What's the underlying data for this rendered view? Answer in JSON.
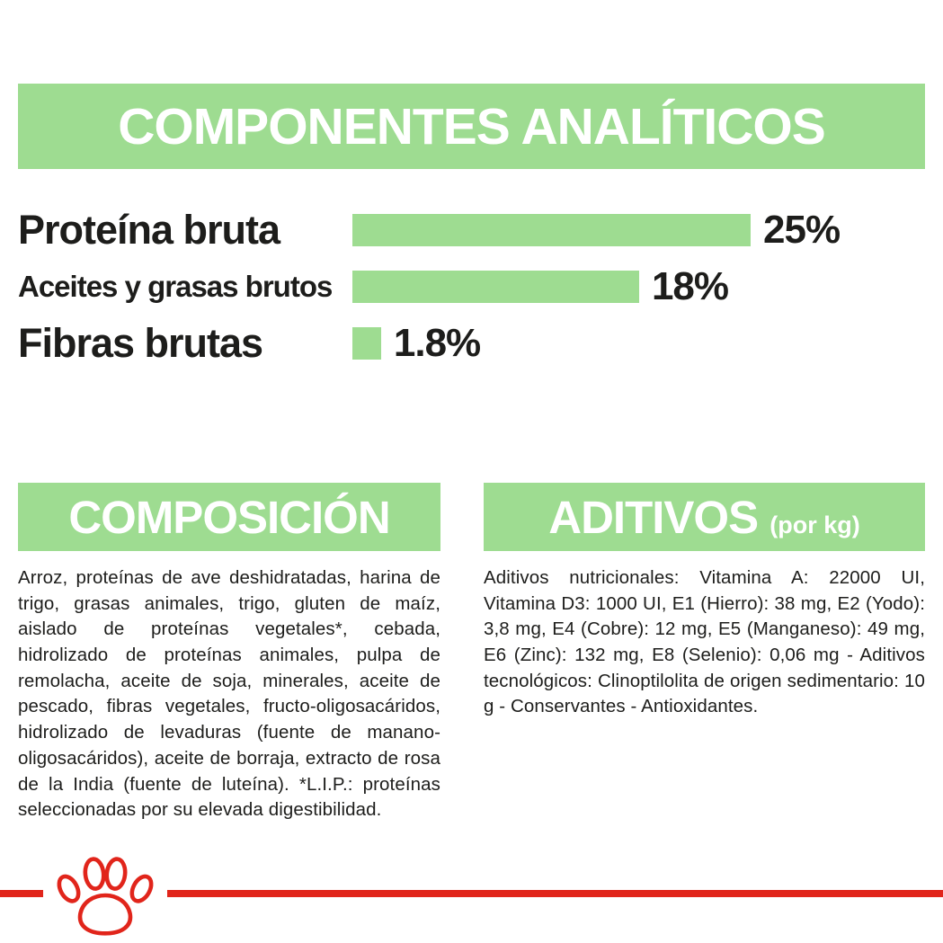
{
  "theme": {
    "green": "#9edc91",
    "red": "#e1251b",
    "text_color": "#1d1d1b"
  },
  "analytical": {
    "title": "COMPONENTES ANALÍTICOS",
    "rows": [
      {
        "label": "Proteína bruta",
        "value_label": "25%",
        "pct": 25
      },
      {
        "label": "Aceites y grasas brutos",
        "value_label": "18%",
        "pct": 18
      },
      {
        "label": "Fibras brutas",
        "value_label": "1.8%",
        "pct": 1.8
      }
    ]
  },
  "composition": {
    "title": "COMPOSICIÓN",
    "body": "Arroz, proteínas de ave deshidratadas, harina de trigo, grasas animales, trigo, gluten de maíz, aislado de proteínas vegetales*, cebada, hidrolizado de proteínas animales, pulpa de remolacha, aceite de soja, minerales, aceite de pescado, fibras vegetales, fructo-oligosacáridos, hidrolizado de levaduras (fuente de manano-oligosacáridos), aceite de borraja, extracto de rosa de la India (fuente de luteína). *L.I.P.: proteínas seleccionadas por su elevada digestibilidad."
  },
  "additives": {
    "title": "ADITIVOS",
    "title_suffix": "(por kg)",
    "body": "Aditivos nutricionales: Vitamina A: 22000 UI, Vitamina D3: 1000 UI, E1 (Hierro): 38 mg, E2 (Yodo): 3,8 mg, E4 (Cobre): 12 mg, E5 (Manganeso): 49 mg, E6 (Zinc): 132 mg, E8 (Selenio): 0,06 mg - Aditivos tecnológicos: Clinoptilolita de origen sedimentario: 10 g - Conservantes - Antioxidantes."
  },
  "footer": {
    "logo": "royal-canin-paw"
  },
  "chart_data": {
    "type": "bar",
    "orientation": "horizontal",
    "title": "COMPONENTES ANALÍTICOS",
    "categories": [
      "Proteína bruta",
      "Aceites y grasas brutos",
      "Fibras brutas"
    ],
    "values": [
      25,
      18,
      1.8
    ],
    "value_labels": [
      "25%",
      "18%",
      "1.8%"
    ],
    "unit": "%",
    "bar_color": "#9edc91",
    "xlim": [
      0,
      25
    ],
    "grid": false,
    "legend": false
  }
}
